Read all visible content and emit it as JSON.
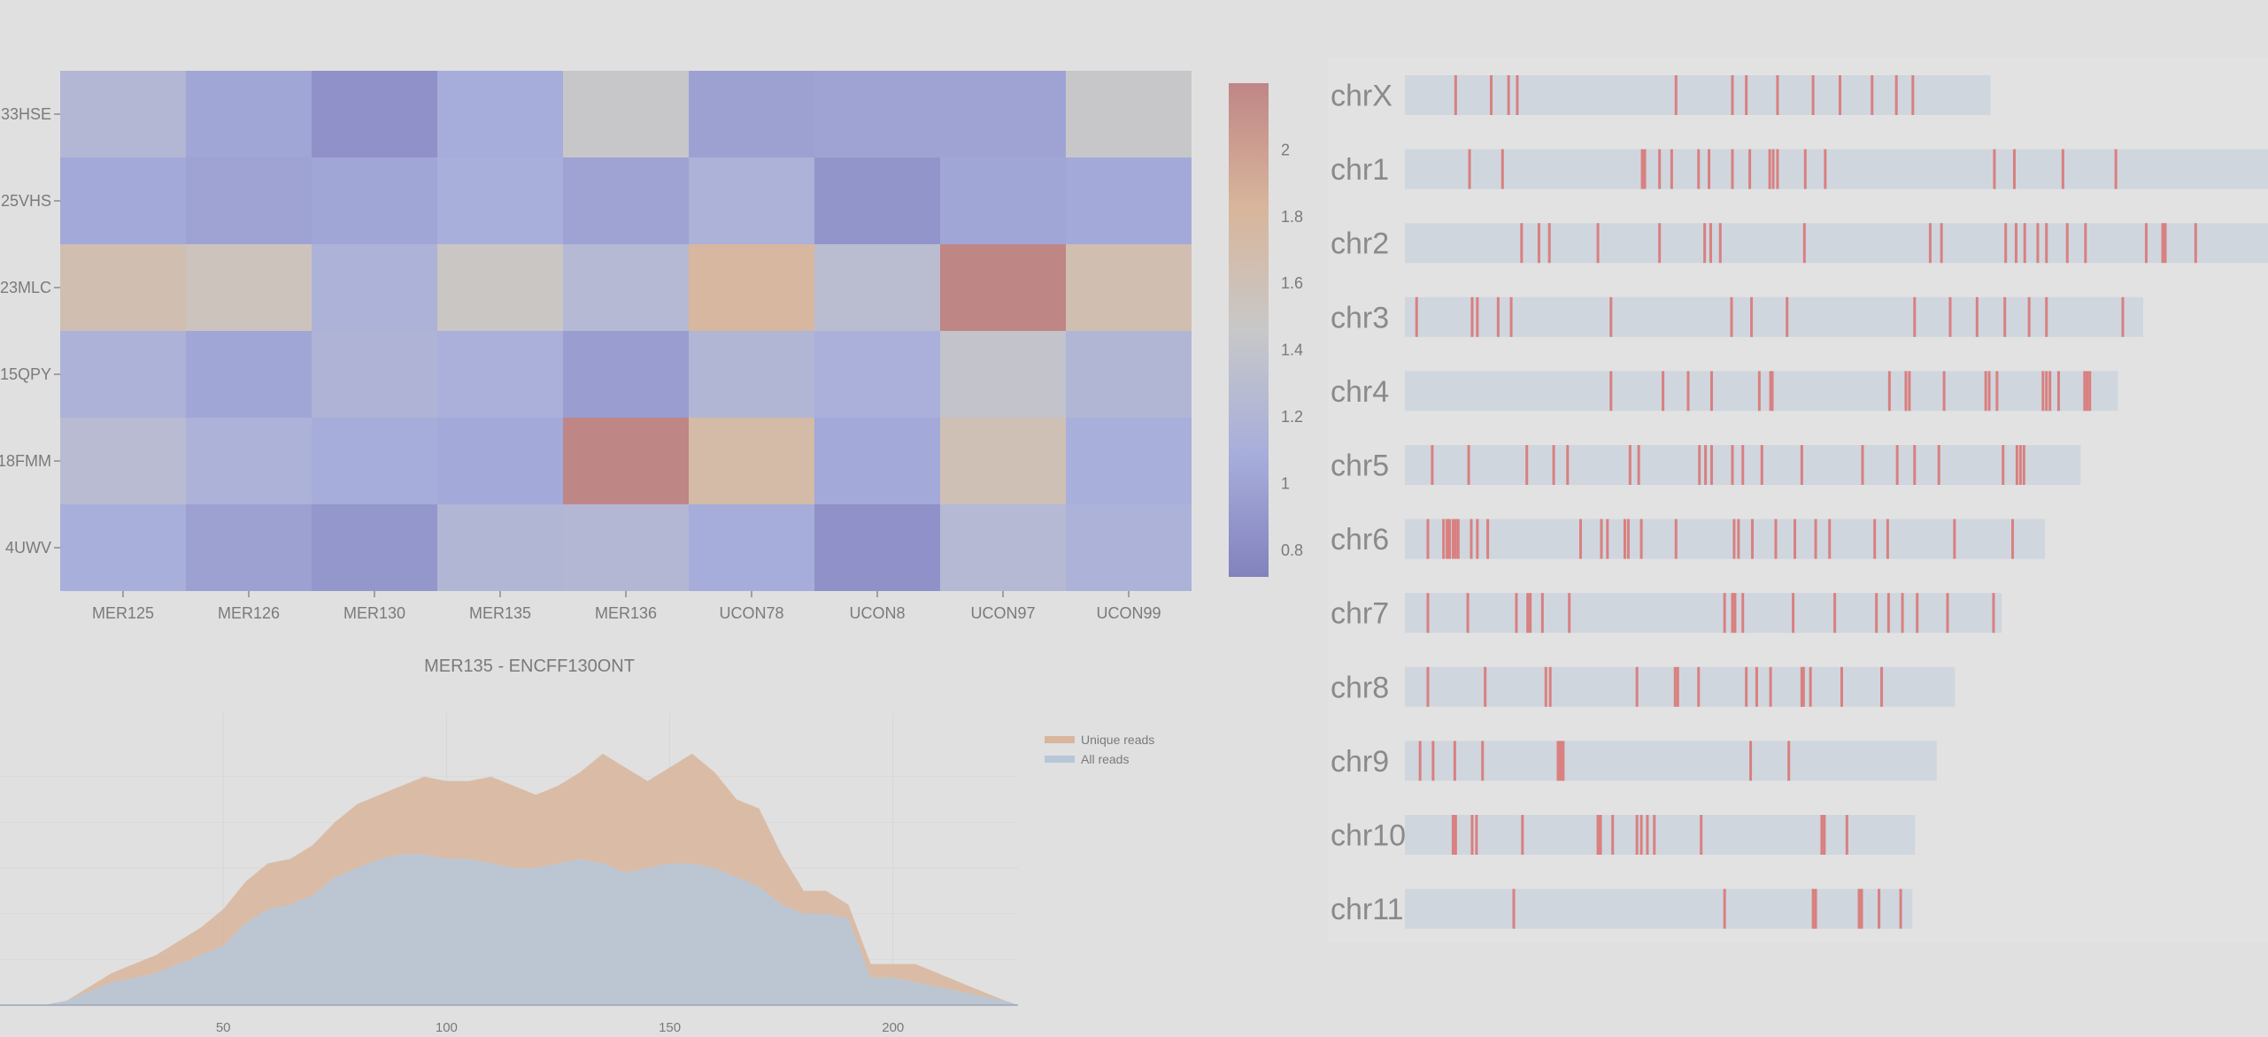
{
  "heatmap": {
    "rows": [
      "33HSE",
      "25VHS",
      "23MLC",
      "15QPY",
      "18FMM",
      "4UWV"
    ],
    "cols": [
      "MER125",
      "MER126",
      "MER130",
      "MER135",
      "MER136",
      "UCON78",
      "UCON8",
      "UCON97",
      "UCON99"
    ],
    "values": [
      [
        1.22,
        1.02,
        0.85,
        1.08,
        1.45,
        0.98,
        1.0,
        1.0,
        1.45
      ],
      [
        1.05,
        1.0,
        1.02,
        1.1,
        1.0,
        1.15,
        0.88,
        1.02,
        1.05
      ],
      [
        1.65,
        1.55,
        1.15,
        1.5,
        1.25,
        1.8,
        1.3,
        2.2,
        1.65
      ],
      [
        1.15,
        1.02,
        1.18,
        1.12,
        0.95,
        1.2,
        1.12,
        1.4,
        1.2
      ],
      [
        1.28,
        1.15,
        1.08,
        1.05,
        2.22,
        1.72,
        1.05,
        1.62,
        1.1
      ],
      [
        1.1,
        0.98,
        0.9,
        1.2,
        1.22,
        1.08,
        0.85,
        1.25,
        1.15
      ]
    ],
    "colorbar": {
      "ticks": [
        "0.8",
        "1",
        "1.2",
        "1.4",
        "1.6",
        "1.8",
        "2"
      ],
      "min": 0.72,
      "max": 2.2,
      "colors": [
        "#8282bd",
        "#a7aedb",
        "#c8c8c8",
        "#d8b59b",
        "#bf8686"
      ]
    }
  },
  "chart_data": [
    {
      "type": "heatmap",
      "title": "",
      "x": [
        "MER125",
        "MER126",
        "MER130",
        "MER135",
        "MER136",
        "UCON78",
        "UCON8",
        "UCON97",
        "UCON99"
      ],
      "y": [
        "33HSE",
        "25VHS",
        "23MLC",
        "15QPY",
        "18FMM",
        "4UWV"
      ]
    },
    {
      "type": "area",
      "title": "MER135 - ENCFF130ONT",
      "xlim": [
        0,
        228
      ],
      "ylim": [
        0,
        60
      ],
      "xticks": [
        "50",
        "100",
        "150",
        "200"
      ],
      "legend_placement": "top-right",
      "x": [
        0,
        5,
        10,
        15,
        20,
        25,
        30,
        35,
        40,
        45,
        50,
        55,
        60,
        65,
        70,
        75,
        80,
        85,
        90,
        95,
        100,
        105,
        110,
        115,
        120,
        125,
        130,
        135,
        140,
        145,
        150,
        155,
        160,
        165,
        170,
        175,
        180,
        185,
        190,
        195,
        200,
        205,
        210,
        215,
        220,
        225,
        228
      ],
      "series": [
        {
          "name": "Unique reads",
          "color": "#d8b59b",
          "values": [
            0,
            0,
            0,
            1,
            4,
            7,
            9,
            11,
            14,
            17,
            21,
            27,
            31,
            32,
            35,
            40,
            44,
            46,
            48,
            50,
            49,
            49,
            50,
            48,
            46,
            48,
            51,
            55,
            52,
            49,
            52,
            55,
            51,
            45,
            43,
            33,
            25,
            25,
            22,
            9,
            9,
            9,
            7,
            5,
            3,
            1,
            0
          ]
        },
        {
          "name": "All reads",
          "color": "#b8c6d8",
          "values": [
            0,
            0,
            0,
            1,
            3,
            5,
            6,
            7,
            9,
            11,
            13,
            18,
            21,
            22,
            24,
            28,
            30,
            32,
            33,
            33,
            32,
            32,
            31,
            30,
            30,
            31,
            32,
            31,
            29,
            30,
            31,
            31,
            30,
            28,
            26,
            22,
            20,
            20,
            19,
            6,
            6,
            5,
            4,
            3,
            2,
            1,
            0
          ]
        }
      ]
    },
    {
      "type": "scatter",
      "title": "",
      "chromosomes": [
        {
          "name": "chrX",
          "len": 0.675,
          "marks": [
            0.057,
            0.098,
            0.118,
            0.128,
            0.311,
            0.376,
            0.392,
            0.428,
            0.469,
            0.5,
            0.537,
            0.565,
            0.584
          ]
        },
        {
          "name": "chr1",
          "len": 1.0,
          "marks": [
            0.073,
            0.111,
            0.272,
            0.275,
            0.292,
            0.306,
            0.337,
            0.349,
            0.376,
            0.396,
            0.419,
            0.423,
            0.428,
            0.46,
            0.483,
            0.678,
            0.701,
            0.757,
            0.818
          ]
        },
        {
          "name": "chr2",
          "len": 1.0,
          "marks": [
            0.133,
            0.153,
            0.165,
            0.221,
            0.292,
            0.344,
            0.351,
            0.362,
            0.459,
            0.604,
            0.617,
            0.691,
            0.703,
            0.713,
            0.728,
            0.738,
            0.762,
            0.783,
            0.853,
            0.872,
            0.875,
            0.91
          ]
        },
        {
          "name": "chr3",
          "len": 0.851,
          "marks": [
            0.012,
            0.076,
            0.082,
            0.106,
            0.121,
            0.236,
            0.375,
            0.398,
            0.439,
            0.586,
            0.627,
            0.658,
            0.69,
            0.718,
            0.738,
            0.826
          ]
        },
        {
          "name": "chr4",
          "len": 0.822,
          "marks": [
            0.236,
            0.296,
            0.325,
            0.352,
            0.407,
            0.42,
            0.422,
            0.557,
            0.576,
            0.58,
            0.62,
            0.668,
            0.672,
            0.681,
            0.734,
            0.738,
            0.742,
            0.752,
            0.782,
            0.785,
            0.788
          ]
        },
        {
          "name": "chr5",
          "len": 0.779,
          "marks": [
            0.03,
            0.072,
            0.139,
            0.17,
            0.186,
            0.258,
            0.268,
            0.338,
            0.345,
            0.352,
            0.376,
            0.388,
            0.41,
            0.456,
            0.526,
            0.566,
            0.586,
            0.614,
            0.688,
            0.704,
            0.708,
            0.712
          ]
        },
        {
          "name": "chr6",
          "len": 0.738,
          "marks": [
            0.025,
            0.043,
            0.047,
            0.05,
            0.054,
            0.057,
            0.06,
            0.075,
            0.082,
            0.094,
            0.201,
            0.225,
            0.232,
            0.252,
            0.256,
            0.271,
            0.311,
            0.378,
            0.383,
            0.399,
            0.426,
            0.448,
            0.472,
            0.488,
            0.54,
            0.555,
            0.632,
            0.699
          ]
        },
        {
          "name": "chr7",
          "len": 0.688,
          "marks": [
            0.025,
            0.071,
            0.127,
            0.14,
            0.143,
            0.157,
            0.188,
            0.367,
            0.376,
            0.379,
            0.388,
            0.446,
            0.494,
            0.542,
            0.556,
            0.572,
            0.589,
            0.624,
            0.677
          ]
        },
        {
          "name": "chr8",
          "len": 0.634,
          "marks": [
            0.025,
            0.091,
            0.161,
            0.166,
            0.266,
            0.31,
            0.313,
            0.337,
            0.392,
            0.404,
            0.42,
            0.456,
            0.458,
            0.466,
            0.502,
            0.548
          ]
        },
        {
          "name": "chr9",
          "len": 0.613,
          "marks": [
            0.016,
            0.031,
            0.056,
            0.088,
            0.175,
            0.177,
            0.179,
            0.181,
            0.397,
            0.441
          ]
        },
        {
          "name": "chr10",
          "len": 0.588,
          "marks": [
            0.054,
            0.057,
            0.076,
            0.081,
            0.134,
            0.221,
            0.224,
            0.238,
            0.266,
            0.271,
            0.278,
            0.286,
            0.34,
            0.479,
            0.482,
            0.508
          ]
        },
        {
          "name": "chr11",
          "len": 0.585,
          "marks": [
            0.124,
            0.367,
            0.469,
            0.472,
            0.522,
            0.525,
            0.545,
            0.57
          ]
        }
      ]
    }
  ],
  "area": {
    "title": "MER135 - ENCFF130ONT",
    "legend": [
      "Unique reads",
      "All reads"
    ]
  },
  "chromosomes": {
    "names": [
      "chrX",
      "chr1",
      "chr2",
      "chr3",
      "chr4",
      "chr5",
      "chr6",
      "chr7",
      "chr8",
      "chr9",
      "chr10",
      "chr11"
    ],
    "bar_color": "#d0d6de",
    "mark_color": "#d98080"
  }
}
